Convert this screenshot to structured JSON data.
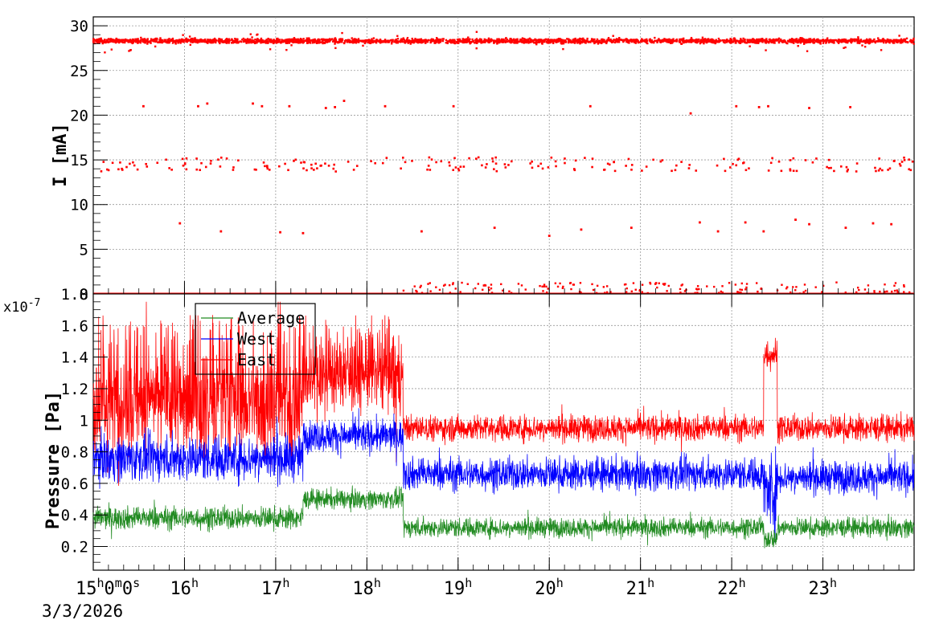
{
  "chart_data": [
    {
      "type": "scatter",
      "ylabel": "I [mA]",
      "ylim": [
        0,
        31
      ],
      "y_ticks": [
        0,
        5,
        10,
        15,
        20,
        25,
        30
      ],
      "y_tick_labels": [
        "0",
        "5",
        "10",
        "15",
        "20",
        "25",
        "30"
      ],
      "xlim_hours": [
        15.0,
        24.0
      ],
      "grid": true,
      "series": [
        {
          "color": "#ff0000",
          "bands": [
            {
              "level": 28.3,
              "spread": 0.6,
              "density": "continuous"
            },
            {
              "level": 14.5,
              "spread": 0.8,
              "density": "sparse"
            },
            {
              "level": 0.0,
              "spread": 0.05,
              "density": "continuous"
            }
          ],
          "points": [
            [
              15.55,
              21.0
            ],
            [
              16.15,
              21.0
            ],
            [
              16.25,
              21.3
            ],
            [
              16.75,
              21.3
            ],
            [
              17.15,
              21.0
            ],
            [
              17.55,
              20.8
            ],
            [
              17.65,
              20.9
            ],
            [
              17.75,
              21.6
            ],
            [
              18.2,
              21.0
            ],
            [
              18.95,
              21.0
            ],
            [
              20.45,
              21.0
            ],
            [
              22.05,
              21.0
            ],
            [
              22.3,
              20.9
            ],
            [
              22.85,
              20.8
            ],
            [
              23.3,
              20.9
            ],
            [
              15.95,
              7.9
            ],
            [
              16.4,
              7.0
            ],
            [
              17.05,
              6.9
            ],
            [
              17.3,
              6.8
            ],
            [
              18.6,
              7.0
            ],
            [
              19.4,
              7.4
            ],
            [
              20.0,
              6.5
            ],
            [
              20.35,
              7.2
            ],
            [
              20.9,
              7.4
            ],
            [
              21.65,
              8.0
            ],
            [
              21.85,
              7.0
            ],
            [
              22.15,
              8.0
            ],
            [
              22.35,
              7.0
            ],
            [
              22.7,
              8.3
            ],
            [
              22.85,
              7.8
            ],
            [
              23.25,
              7.4
            ],
            [
              23.55,
              7.9
            ],
            [
              23.75,
              7.8
            ],
            [
              22.4,
              21.0
            ],
            [
              21.55,
              20.2
            ],
            [
              16.85,
              21.0
            ]
          ]
        }
      ]
    },
    {
      "type": "line",
      "ylabel": "Pressure [Pa]",
      "y_exponent_label": "x10",
      "y_exponent": "-7",
      "ylim": [
        0.05,
        1.8
      ],
      "y_ticks": [
        0.2,
        0.4,
        0.6,
        0.8,
        1.0,
        1.2,
        1.4,
        1.6,
        1.8
      ],
      "y_tick_labels": [
        "0.2",
        "0.4",
        "0.6",
        "0.8",
        "1",
        "1.2",
        "1.4",
        "1.6",
        "1.8"
      ],
      "xlim_hours": [
        15.0,
        24.0
      ],
      "x_ticks": [
        15,
        16,
        17,
        18,
        19,
        20,
        21,
        22,
        23
      ],
      "x_tick_labels": [
        {
          "base": "15",
          "sup": "h",
          "extra": "0",
          "sup2": "m",
          "extra2": "0",
          "sup3": "s"
        },
        {
          "base": "16",
          "sup": "h"
        },
        {
          "base": "17",
          "sup": "h"
        },
        {
          "base": "18",
          "sup": "h"
        },
        {
          "base": "19",
          "sup": "h"
        },
        {
          "base": "20",
          "sup": "h"
        },
        {
          "base": "21",
          "sup": "h"
        },
        {
          "base": "22",
          "sup": "h"
        },
        {
          "base": "23",
          "sup": "h"
        }
      ],
      "date_label": "3/3/2026",
      "grid": true,
      "legend_position": "top-left",
      "series": [
        {
          "name": "Average",
          "color": "#228b22",
          "segments": [
            {
              "x0": 15.0,
              "x1": 17.3,
              "mean": 0.38,
              "noise": 0.07
            },
            {
              "x0": 17.3,
              "x1": 18.4,
              "mean": 0.5,
              "noise": 0.06
            },
            {
              "x0": 18.4,
              "x1": 22.35,
              "mean": 0.32,
              "noise": 0.06
            },
            {
              "x0": 22.35,
              "x1": 22.5,
              "mean": 0.25,
              "noise": 0.06
            },
            {
              "x0": 22.5,
              "x1": 24.0,
              "mean": 0.32,
              "noise": 0.06
            }
          ]
        },
        {
          "name": "West",
          "color": "#0000ff",
          "segments": [
            {
              "x0": 15.0,
              "x1": 17.3,
              "mean": 0.76,
              "noise": 0.14
            },
            {
              "x0": 17.3,
              "x1": 18.4,
              "mean": 0.9,
              "noise": 0.1
            },
            {
              "x0": 18.4,
              "x1": 22.35,
              "mean": 0.66,
              "noise": 0.1
            },
            {
              "x0": 22.35,
              "x1": 22.5,
              "mean": 0.55,
              "noise": 0.25
            },
            {
              "x0": 22.5,
              "x1": 24.0,
              "mean": 0.64,
              "noise": 0.1
            }
          ]
        },
        {
          "name": "East",
          "color": "#ff0000",
          "segments": [
            {
              "x0": 15.0,
              "x1": 17.3,
              "mean": 1.12,
              "noise": 0.35
            },
            {
              "x0": 17.3,
              "x1": 18.4,
              "mean": 1.3,
              "noise": 0.25
            },
            {
              "x0": 18.4,
              "x1": 22.35,
              "mean": 0.95,
              "noise": 0.08
            },
            {
              "x0": 22.35,
              "x1": 22.5,
              "mean": 1.42,
              "noise": 0.1
            },
            {
              "x0": 22.5,
              "x1": 24.0,
              "mean": 0.95,
              "noise": 0.08
            }
          ]
        }
      ]
    }
  ]
}
